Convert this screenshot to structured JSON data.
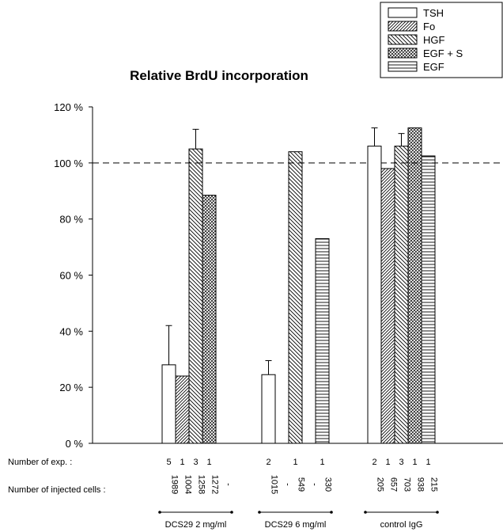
{
  "chart_data": {
    "type": "bar",
    "title": "Relative BrdU incorporation",
    "xlabel": "",
    "ylabel": "",
    "ylim": [
      0,
      120
    ],
    "y_ticks": [
      "0 %",
      "20 %",
      "40 %",
      "60 %",
      "80 %",
      "100 %",
      "120 %"
    ],
    "reference_line": 100,
    "grid": false,
    "legend_position": "top-right",
    "series": [
      {
        "name": "TSH",
        "pattern": "empty"
      },
      {
        "name": "Fo",
        "pattern": "diag-fine-right"
      },
      {
        "name": "HGF",
        "pattern": "diag-left"
      },
      {
        "name": "EGF + S",
        "pattern": "crosshatch"
      },
      {
        "name": "EGF",
        "pattern": "horizontal"
      }
    ],
    "groups": [
      {
        "label": "DCS29  2 mg/ml",
        "values": [
          28,
          24,
          105,
          88.5,
          null
        ],
        "errors": [
          14,
          null,
          7,
          null,
          null
        ],
        "n_exp": [
          "5",
          "1",
          "3",
          "1",
          ""
        ],
        "n_cells": [
          "1989",
          "1004",
          "1258",
          "1272",
          "-"
        ]
      },
      {
        "label": "DCS29  6 mg/ml",
        "values": [
          24.5,
          null,
          104,
          null,
          73
        ],
        "errors": [
          5,
          null,
          null,
          null,
          null
        ],
        "n_exp": [
          "2",
          "",
          "1",
          "",
          "1"
        ],
        "n_cells": [
          "1015",
          "-",
          "549",
          "-",
          "330"
        ]
      },
      {
        "label": "control IgG",
        "values": [
          106,
          98,
          106,
          112.5,
          102.5
        ],
        "errors": [
          6.5,
          null,
          4.5,
          null,
          null
        ],
        "n_exp": [
          "2",
          "1",
          "3",
          "1",
          "1"
        ],
        "n_cells": [
          "205",
          "657",
          "703",
          "938",
          "215"
        ]
      }
    ],
    "row_labels": {
      "n_exp": "Number of exp. :",
      "n_cells": "Number of injected cells :"
    }
  }
}
